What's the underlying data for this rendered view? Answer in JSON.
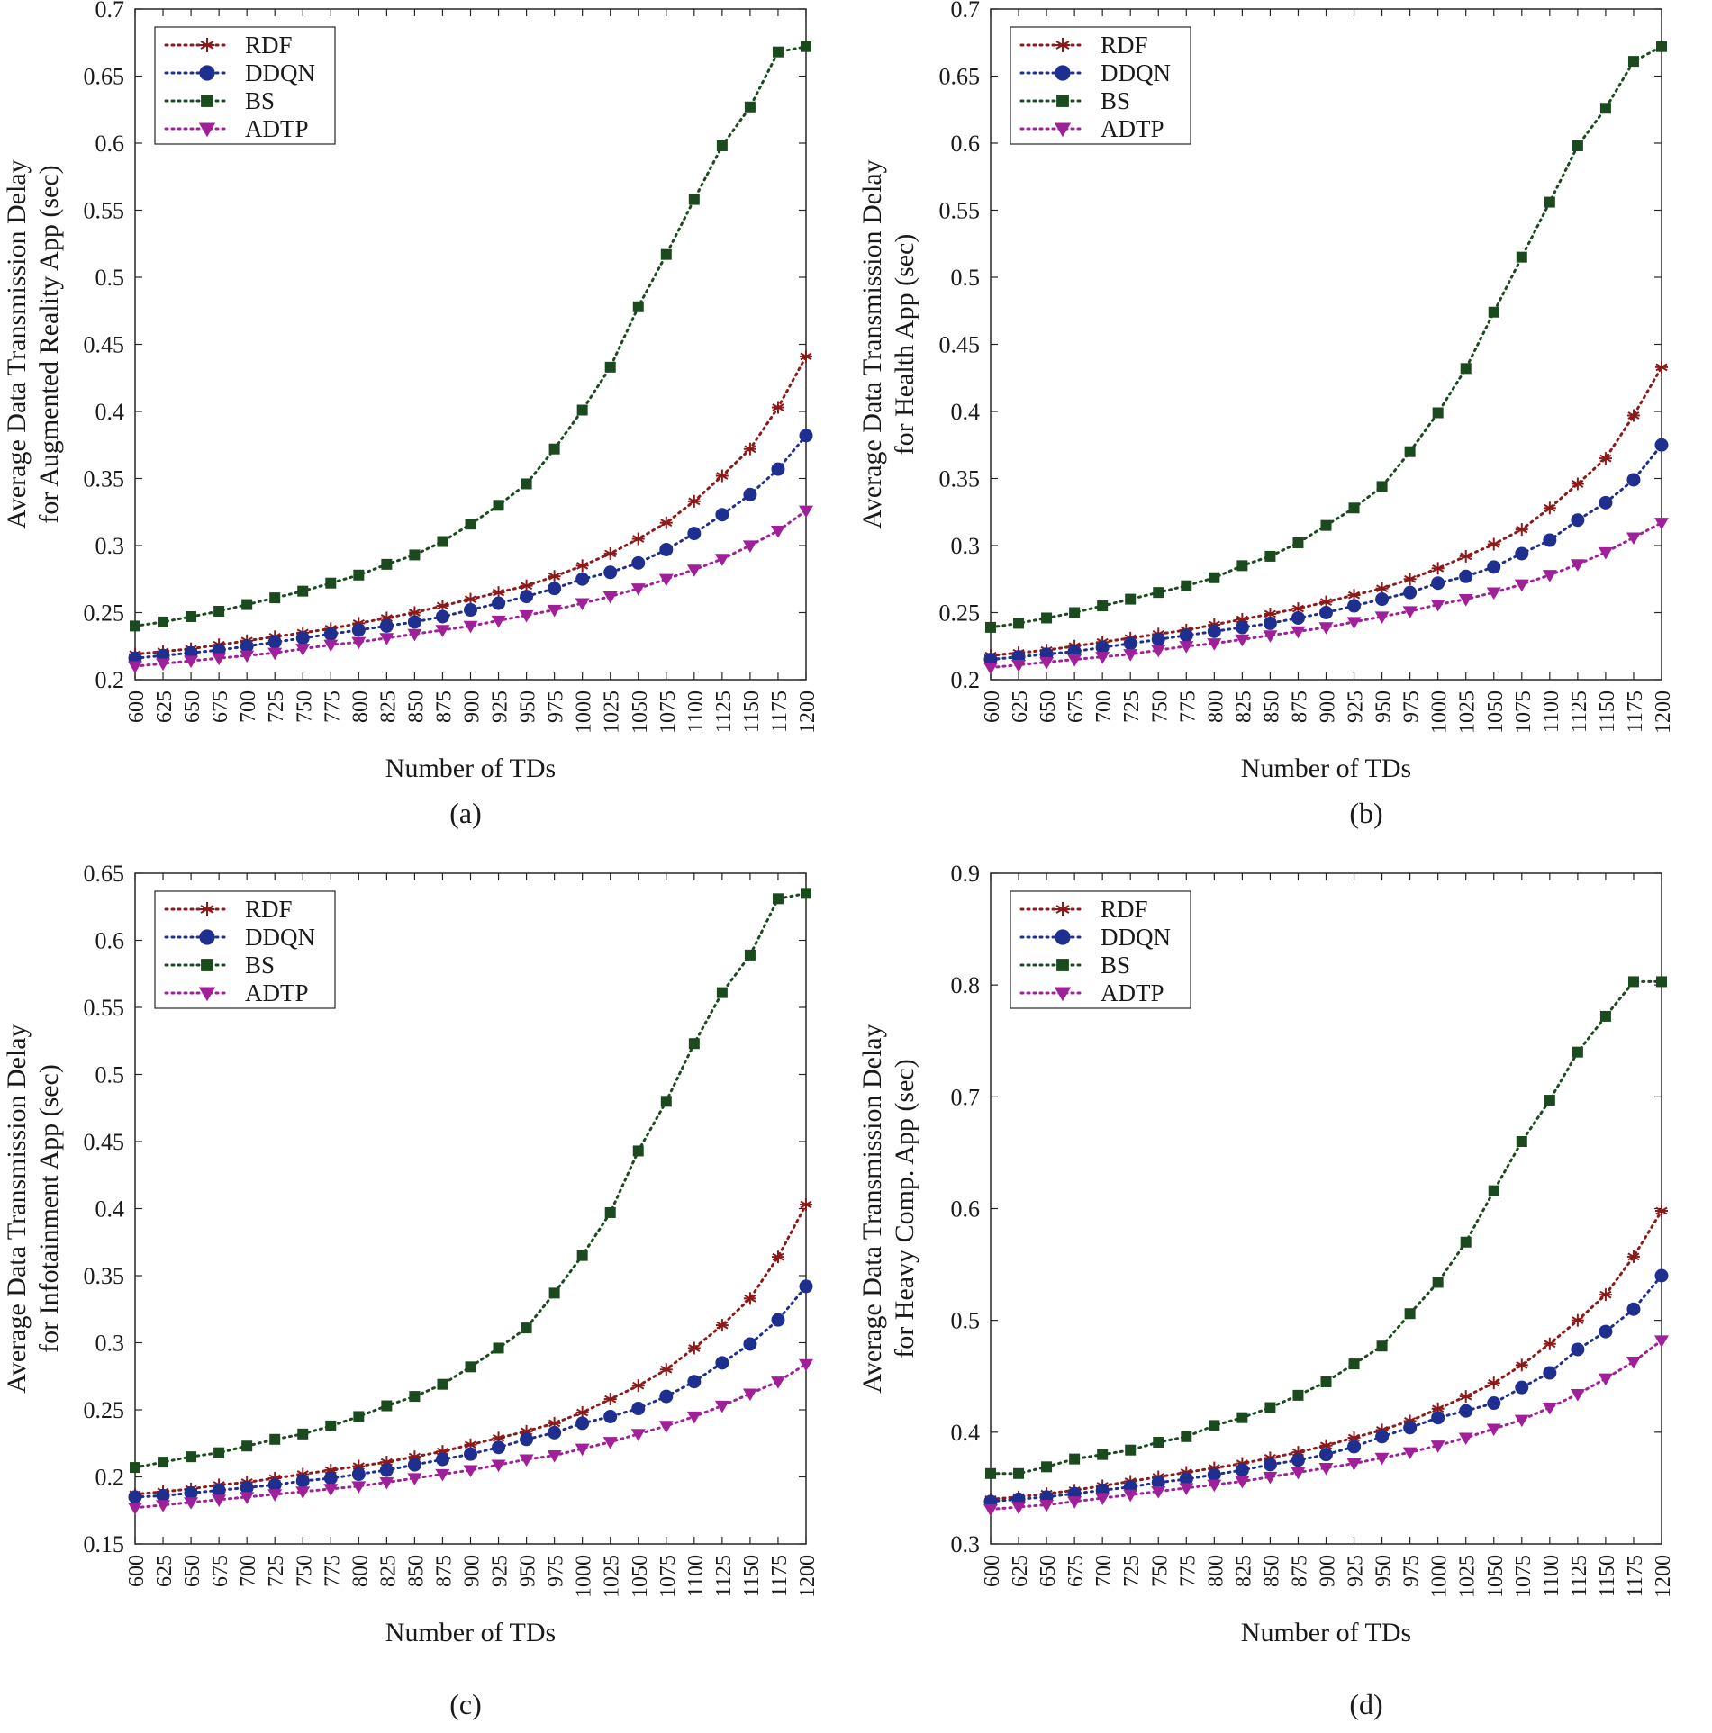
{
  "figure": {
    "captions": [
      "(a)",
      "(b)",
      "(c)",
      "(d)"
    ]
  },
  "chart_data": [
    {
      "type": "line",
      "panel_label": "(a)",
      "xlabel": "Number of TDs",
      "ylabel": [
        "Average Data Transmission Delay",
        "for Augmented Reality App (sec)"
      ],
      "ylim": [
        0.2,
        0.7
      ],
      "yticks": [
        "0.2",
        "0.25",
        "0.3",
        "0.35",
        "0.4",
        "0.45",
        "0.5",
        "0.55",
        "0.6",
        "0.65",
        "0.7"
      ],
      "categories": [
        "600",
        "625",
        "650",
        "675",
        "700",
        "725",
        "750",
        "775",
        "800",
        "825",
        "850",
        "875",
        "900",
        "925",
        "950",
        "975",
        "1000",
        "1025",
        "1050",
        "1075",
        "1100",
        "1125",
        "1150",
        "1175",
        "1200"
      ],
      "legend_position": "top-left",
      "series": [
        {
          "name": "RDF",
          "color": "#8b1a1a",
          "marker": "asterisk",
          "values": [
            0.219,
            0.221,
            0.223,
            0.226,
            0.229,
            0.232,
            0.235,
            0.238,
            0.242,
            0.246,
            0.25,
            0.255,
            0.26,
            0.265,
            0.27,
            0.277,
            0.285,
            0.294,
            0.305,
            0.317,
            0.333,
            0.352,
            0.372,
            0.403,
            0.441
          ]
        },
        {
          "name": "DDQN",
          "color": "#1f2f8f",
          "marker": "circle",
          "values": [
            0.216,
            0.218,
            0.22,
            0.222,
            0.225,
            0.228,
            0.231,
            0.234,
            0.237,
            0.24,
            0.243,
            0.247,
            0.252,
            0.257,
            0.262,
            0.268,
            0.275,
            0.28,
            0.287,
            0.297,
            0.309,
            0.323,
            0.338,
            0.357,
            0.382
          ]
        },
        {
          "name": "BS",
          "color": "#1b4a1e",
          "marker": "square",
          "values": [
            0.24,
            0.243,
            0.247,
            0.251,
            0.256,
            0.261,
            0.266,
            0.272,
            0.278,
            0.286,
            0.293,
            0.303,
            0.316,
            0.33,
            0.346,
            0.372,
            0.401,
            0.433,
            0.478,
            0.517,
            0.558,
            0.598,
            0.627,
            0.668,
            0.672
          ]
        },
        {
          "name": "ADTP",
          "color": "#a0209a",
          "marker": "triangle-down",
          "values": [
            0.21,
            0.212,
            0.214,
            0.216,
            0.218,
            0.22,
            0.223,
            0.226,
            0.228,
            0.231,
            0.234,
            0.237,
            0.24,
            0.244,
            0.248,
            0.252,
            0.257,
            0.262,
            0.268,
            0.275,
            0.282,
            0.29,
            0.3,
            0.311,
            0.326
          ]
        }
      ]
    },
    {
      "type": "line",
      "panel_label": "(b)",
      "xlabel": "Number of TDs",
      "ylabel": [
        "Average Data Transmission Delay",
        "for Health App (sec)"
      ],
      "ylim": [
        0.2,
        0.7
      ],
      "yticks": [
        "0.2",
        "0.25",
        "0.3",
        "0.35",
        "0.4",
        "0.45",
        "0.5",
        "0.55",
        "0.6",
        "0.65",
        "0.7"
      ],
      "categories": [
        "600",
        "625",
        "650",
        "675",
        "700",
        "725",
        "750",
        "775",
        "800",
        "825",
        "850",
        "875",
        "900",
        "925",
        "950",
        "975",
        "1000",
        "1025",
        "1050",
        "1075",
        "1100",
        "1125",
        "1150",
        "1175",
        "1200"
      ],
      "legend_position": "top-left",
      "series": [
        {
          "name": "RDF",
          "color": "#8b1a1a",
          "marker": "asterisk",
          "values": [
            0.218,
            0.22,
            0.222,
            0.225,
            0.228,
            0.231,
            0.234,
            0.237,
            0.241,
            0.245,
            0.249,
            0.253,
            0.258,
            0.263,
            0.268,
            0.275,
            0.283,
            0.292,
            0.301,
            0.312,
            0.328,
            0.346,
            0.365,
            0.397,
            0.433
          ]
        },
        {
          "name": "DDQN",
          "color": "#1f2f8f",
          "marker": "circle",
          "values": [
            0.215,
            0.217,
            0.219,
            0.221,
            0.224,
            0.227,
            0.23,
            0.233,
            0.236,
            0.239,
            0.242,
            0.246,
            0.25,
            0.255,
            0.26,
            0.265,
            0.272,
            0.277,
            0.284,
            0.294,
            0.304,
            0.319,
            0.332,
            0.349,
            0.375
          ]
        },
        {
          "name": "BS",
          "color": "#1b4a1e",
          "marker": "square",
          "values": [
            0.239,
            0.242,
            0.246,
            0.25,
            0.255,
            0.26,
            0.265,
            0.27,
            0.276,
            0.285,
            0.292,
            0.302,
            0.315,
            0.328,
            0.344,
            0.37,
            0.399,
            0.432,
            0.474,
            0.515,
            0.556,
            0.598,
            0.626,
            0.661,
            0.672
          ]
        },
        {
          "name": "ADTP",
          "color": "#a0209a",
          "marker": "triangle-down",
          "values": [
            0.209,
            0.211,
            0.213,
            0.215,
            0.217,
            0.219,
            0.222,
            0.225,
            0.227,
            0.23,
            0.233,
            0.236,
            0.239,
            0.243,
            0.247,
            0.251,
            0.256,
            0.26,
            0.265,
            0.271,
            0.278,
            0.286,
            0.295,
            0.306,
            0.317
          ]
        }
      ]
    },
    {
      "type": "line",
      "panel_label": "(c)",
      "xlabel": "Number of TDs",
      "ylabel": [
        "Average Data Transmission Delay",
        "for Infotainment App (sec)"
      ],
      "ylim": [
        0.15,
        0.65
      ],
      "yticks": [
        "0.15",
        "0.2",
        "0.25",
        "0.3",
        "0.35",
        "0.4",
        "0.45",
        "0.5",
        "0.55",
        "0.6",
        "0.65"
      ],
      "categories": [
        "600",
        "625",
        "650",
        "675",
        "700",
        "725",
        "750",
        "775",
        "800",
        "825",
        "850",
        "875",
        "900",
        "925",
        "950",
        "975",
        "1000",
        "1025",
        "1050",
        "1075",
        "1100",
        "1125",
        "1150",
        "1175",
        "1200"
      ],
      "legend_position": "top-left",
      "series": [
        {
          "name": "RDF",
          "color": "#8b1a1a",
          "marker": "asterisk",
          "values": [
            0.187,
            0.189,
            0.191,
            0.194,
            0.196,
            0.199,
            0.202,
            0.205,
            0.208,
            0.211,
            0.215,
            0.219,
            0.224,
            0.229,
            0.234,
            0.24,
            0.248,
            0.258,
            0.268,
            0.28,
            0.296,
            0.313,
            0.333,
            0.364,
            0.403
          ]
        },
        {
          "name": "DDQN",
          "color": "#1f2f8f",
          "marker": "circle",
          "values": [
            0.185,
            0.186,
            0.188,
            0.19,
            0.192,
            0.194,
            0.197,
            0.199,
            0.202,
            0.205,
            0.209,
            0.213,
            0.217,
            0.222,
            0.228,
            0.233,
            0.24,
            0.245,
            0.251,
            0.26,
            0.271,
            0.285,
            0.299,
            0.317,
            0.342
          ]
        },
        {
          "name": "BS",
          "color": "#1b4a1e",
          "marker": "square",
          "values": [
            0.207,
            0.211,
            0.215,
            0.218,
            0.223,
            0.228,
            0.232,
            0.238,
            0.245,
            0.253,
            0.26,
            0.269,
            0.282,
            0.296,
            0.311,
            0.337,
            0.365,
            0.397,
            0.443,
            0.48,
            0.523,
            0.561,
            0.589,
            0.631,
            0.635
          ]
        },
        {
          "name": "ADTP",
          "color": "#a0209a",
          "marker": "triangle-down",
          "values": [
            0.177,
            0.179,
            0.181,
            0.183,
            0.185,
            0.187,
            0.189,
            0.191,
            0.193,
            0.196,
            0.199,
            0.202,
            0.205,
            0.209,
            0.213,
            0.216,
            0.221,
            0.226,
            0.232,
            0.238,
            0.245,
            0.253,
            0.262,
            0.271,
            0.284
          ]
        }
      ]
    },
    {
      "type": "line",
      "panel_label": "(d)",
      "xlabel": "Number of TDs",
      "ylabel": [
        "Average Data Transmission Delay",
        "for Heavy Comp. App (sec)"
      ],
      "ylim": [
        0.3,
        0.9
      ],
      "yticks": [
        "0.3",
        "0.4",
        "0.5",
        "0.6",
        "0.7",
        "0.8",
        "0.9"
      ],
      "categories": [
        "600",
        "625",
        "650",
        "675",
        "700",
        "725",
        "750",
        "775",
        "800",
        "825",
        "850",
        "875",
        "900",
        "925",
        "950",
        "975",
        "1000",
        "1025",
        "1050",
        "1075",
        "1100",
        "1125",
        "1150",
        "1175",
        "1200"
      ],
      "legend_position": "top-left",
      "series": [
        {
          "name": "RDF",
          "color": "#8b1a1a",
          "marker": "asterisk",
          "values": [
            0.34,
            0.342,
            0.345,
            0.348,
            0.352,
            0.356,
            0.36,
            0.364,
            0.368,
            0.372,
            0.377,
            0.382,
            0.388,
            0.395,
            0.402,
            0.41,
            0.421,
            0.432,
            0.444,
            0.46,
            0.479,
            0.5,
            0.523,
            0.557,
            0.598
          ]
        },
        {
          "name": "DDQN",
          "color": "#1f2f8f",
          "marker": "circle",
          "values": [
            0.338,
            0.34,
            0.342,
            0.345,
            0.348,
            0.351,
            0.355,
            0.358,
            0.362,
            0.366,
            0.371,
            0.375,
            0.38,
            0.387,
            0.396,
            0.404,
            0.413,
            0.419,
            0.426,
            0.44,
            0.453,
            0.474,
            0.49,
            0.51,
            0.54
          ]
        },
        {
          "name": "BS",
          "color": "#1b4a1e",
          "marker": "square",
          "values": [
            0.363,
            0.363,
            0.369,
            0.376,
            0.38,
            0.384,
            0.391,
            0.396,
            0.406,
            0.413,
            0.422,
            0.433,
            0.445,
            0.461,
            0.477,
            0.506,
            0.534,
            0.57,
            0.616,
            0.66,
            0.697,
            0.74,
            0.772,
            0.803,
            0.803
          ]
        },
        {
          "name": "ADTP",
          "color": "#a0209a",
          "marker": "triangle-down",
          "values": [
            0.331,
            0.333,
            0.335,
            0.338,
            0.341,
            0.344,
            0.347,
            0.35,
            0.353,
            0.356,
            0.36,
            0.364,
            0.368,
            0.372,
            0.377,
            0.382,
            0.388,
            0.395,
            0.403,
            0.411,
            0.422,
            0.434,
            0.448,
            0.463,
            0.482
          ]
        }
      ]
    }
  ]
}
